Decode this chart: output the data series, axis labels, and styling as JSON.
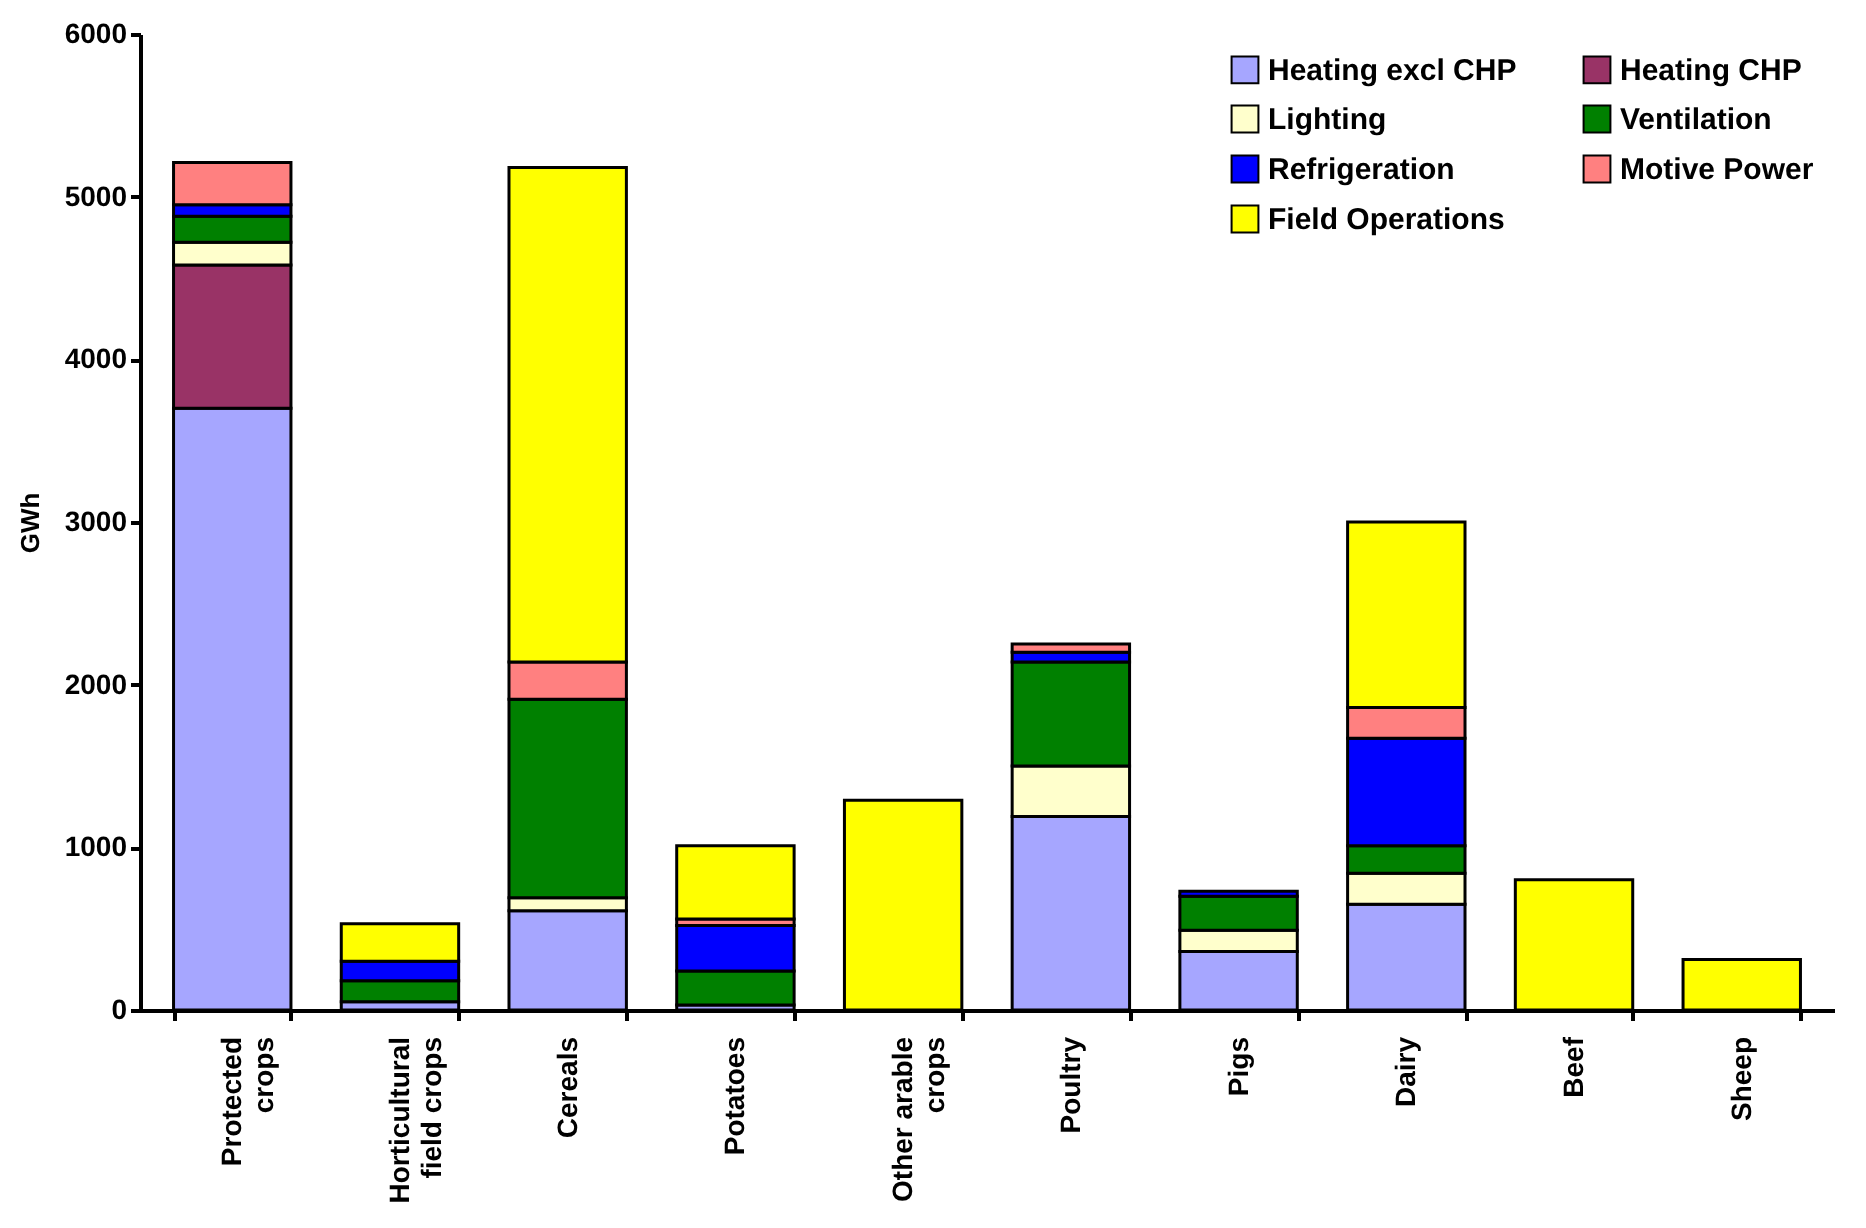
{
  "chart_data": {
    "type": "bar",
    "stacked": true,
    "ylabel": "GWh",
    "ylim": [
      0,
      6000
    ],
    "yticks": [
      0,
      1000,
      2000,
      3000,
      4000,
      5000,
      6000
    ],
    "grid": false,
    "legend": "top right",
    "categories": [
      "Protected crops",
      "Horticultural field crops",
      "Cereals",
      "Potatoes",
      "Other arable crops",
      "Poultry",
      "Pigs",
      "Dairy",
      "Beef",
      "Sheep"
    ],
    "series": [
      {
        "name": "Heating excl CHP",
        "color": "#a6a6ff",
        "values": [
          3700,
          50,
          610,
          30,
          0,
          1190,
          360,
          650,
          0,
          0
        ]
      },
      {
        "name": "Heating CHP",
        "color": "#993366",
        "values": [
          880,
          0,
          0,
          0,
          0,
          0,
          0,
          0,
          0,
          0
        ]
      },
      {
        "name": "Lighting",
        "color": "#ffffcc",
        "values": [
          140,
          0,
          80,
          0,
          0,
          310,
          130,
          190,
          0,
          0
        ]
      },
      {
        "name": "Ventilation",
        "color": "#008000",
        "values": [
          160,
          130,
          1220,
          210,
          0,
          640,
          210,
          170,
          0,
          0
        ]
      },
      {
        "name": "Refrigeration",
        "color": "#0000ff",
        "values": [
          70,
          120,
          0,
          280,
          0,
          60,
          30,
          660,
          0,
          0
        ]
      },
      {
        "name": "Motive Power",
        "color": "#ff8080",
        "values": [
          260,
          0,
          230,
          40,
          0,
          50,
          0,
          190,
          0,
          0
        ]
      },
      {
        "name": "Field Operations",
        "color": "#ffff00",
        "values": [
          0,
          230,
          3040,
          450,
          1290,
          0,
          0,
          1140,
          800,
          310
        ]
      }
    ]
  }
}
